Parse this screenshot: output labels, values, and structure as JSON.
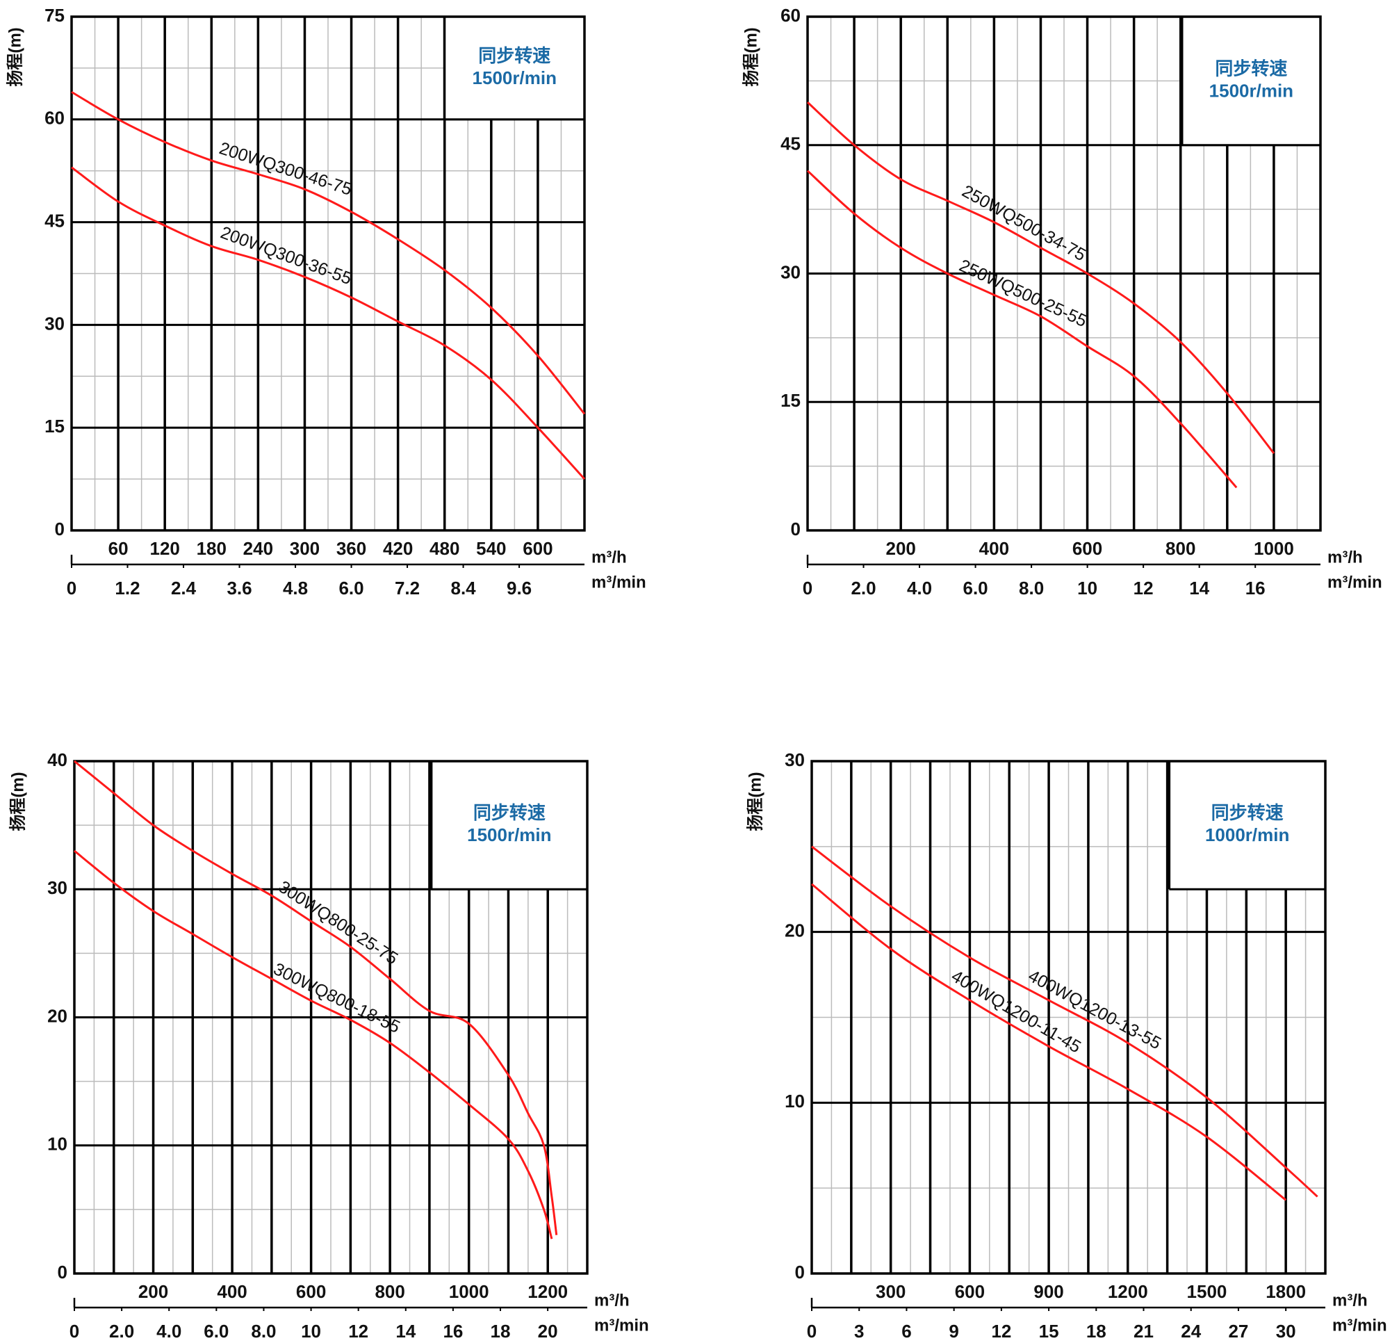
{
  "chart_data": [
    {
      "type": "line",
      "y_label": "扬程(m)",
      "ylim": [
        0,
        75
      ],
      "yticks": [
        0,
        15,
        30,
        45,
        60,
        75
      ],
      "xlim": [
        0,
        660
      ],
      "xticks": [
        60,
        120,
        180,
        240,
        300,
        360,
        420,
        480,
        540,
        600
      ],
      "x_unit": "m³/h",
      "grid_major": "tick",
      "x2lim": [
        0,
        11
      ],
      "x2ticks": [
        0,
        1.2,
        2.4,
        3.6,
        4.8,
        {
          "value": 6,
          "label": "6.0"
        },
        7.2,
        8.4,
        9.6
      ],
      "x2_unit": "m³/min",
      "note_title": "同步转速",
      "note_speed": "1500r/min",
      "series": [
        {
          "name": "200WQ300-46-75",
          "color": "#ff1a1a",
          "x": [
            0,
            60,
            120,
            180,
            240,
            300,
            360,
            420,
            480,
            540,
            600,
            660
          ],
          "values": [
            64,
            60,
            56.7,
            54,
            52,
            49.8,
            46.5,
            42.5,
            38,
            32.5,
            25.5,
            17
          ]
        },
        {
          "name": "200WQ300-36-55",
          "color": "#ff1a1a",
          "x": [
            0,
            60,
            120,
            180,
            240,
            300,
            360,
            420,
            480,
            540,
            600,
            660
          ],
          "values": [
            53,
            48,
            44.5,
            41.5,
            39.5,
            37,
            34,
            30.5,
            27,
            22,
            15,
            7.5
          ]
        }
      ]
    },
    {
      "type": "line",
      "y_label": "扬程(m)",
      "ylim": [
        0,
        60
      ],
      "yticks": [
        0,
        15,
        30,
        45,
        60
      ],
      "xlim": [
        0,
        1100
      ],
      "xticks": [
        200,
        400,
        600,
        800,
        1000
      ],
      "x_unit": "m³/h",
      "grid_major": "half-tick",
      "x2lim": [
        0,
        18.33
      ],
      "x2ticks": [
        0,
        {
          "value": 2,
          "label": "2.0"
        },
        {
          "value": 4,
          "label": "4.0"
        },
        {
          "value": 6,
          "label": "6.0"
        },
        {
          "value": 8,
          "label": "8.0"
        },
        10,
        12,
        14,
        16
      ],
      "x2_unit": "m³/min",
      "note_title": "同步转速",
      "note_speed": "1500r/min",
      "series": [
        {
          "name": "250WQ500-34-75",
          "color": "#ff1a1a",
          "x": [
            0,
            100,
            200,
            300,
            400,
            500,
            600,
            700,
            800,
            900,
            1000
          ],
          "values": [
            50,
            45,
            41,
            38.5,
            36,
            33,
            30,
            26.5,
            22,
            16,
            9
          ]
        },
        {
          "name": "250WQ500-25-55",
          "color": "#ff1a1a",
          "x": [
            0,
            100,
            200,
            300,
            400,
            500,
            600,
            700,
            800,
            920
          ],
          "values": [
            42,
            37,
            33,
            30,
            27.5,
            25,
            21.5,
            18,
            12.5,
            5
          ]
        }
      ]
    },
    {
      "type": "line",
      "y_label": "扬程(m)",
      "ylim": [
        0,
        40
      ],
      "yticks": [
        0,
        10,
        20,
        30,
        40
      ],
      "xlim": [
        0,
        1300
      ],
      "xticks": [
        200,
        400,
        600,
        800,
        1000,
        1200
      ],
      "x_unit": "m³/h",
      "grid_major": "half-tick",
      "x2lim": [
        0,
        21.67
      ],
      "x2ticks": [
        0,
        {
          "value": 2,
          "label": "2.0"
        },
        {
          "value": 4,
          "label": "4.0"
        },
        {
          "value": 6,
          "label": "6.0"
        },
        {
          "value": 8,
          "label": "8.0"
        },
        10,
        12,
        14,
        16,
        18,
        20
      ],
      "x2_unit": "m³/min",
      "note_title": "同步转速",
      "note_speed": "1500r/min",
      "series": [
        {
          "name": "300WQ800-25-75",
          "color": "#ff1a1a",
          "x": [
            0,
            100,
            200,
            300,
            400,
            500,
            600,
            700,
            800,
            900,
            1000,
            1100,
            1150,
            1190,
            1210,
            1222
          ],
          "values": [
            40,
            37.5,
            35,
            33,
            31.2,
            29.5,
            27.5,
            25.5,
            23,
            20.5,
            19.5,
            15.5,
            12.5,
            10,
            6,
            3
          ]
        },
        {
          "name": "300WQ800-18-55",
          "color": "#ff1a1a",
          "x": [
            0,
            100,
            200,
            300,
            400,
            500,
            600,
            700,
            800,
            900,
            1000,
            1100,
            1150,
            1190,
            1210
          ],
          "values": [
            33,
            30.5,
            28.3,
            26.5,
            24.7,
            23,
            21.3,
            19.8,
            18,
            15.7,
            13.2,
            10.5,
            8,
            5,
            2.7
          ]
        }
      ]
    },
    {
      "type": "line",
      "y_label": "扬程(m)",
      "ylim": [
        0,
        30
      ],
      "yticks": [
        0,
        10,
        20,
        30
      ],
      "xlim": [
        0,
        1950
      ],
      "xticks": [
        300,
        600,
        900,
        1200,
        1500,
        1800
      ],
      "x_unit": "m³/h",
      "grid_major": "half-tick",
      "x2lim": [
        0,
        32.5
      ],
      "x2ticks": [
        0,
        3,
        6,
        9,
        12,
        15,
        18,
        21,
        24,
        27,
        30
      ],
      "x2_unit": "m³/min",
      "note_title": "同步转速",
      "note_speed": "1000r/min",
      "series": [
        {
          "name": "400WQ1200-13-55",
          "color": "#ff1a1a",
          "x": [
            0,
            300,
            600,
            900,
            1200,
            1500,
            1800,
            1920
          ],
          "values": [
            25,
            21.5,
            18.5,
            16,
            13.5,
            10.3,
            6.2,
            4.5
          ]
        },
        {
          "name": "400WQ1200-11-45",
          "color": "#ff1a1a",
          "x": [
            0,
            300,
            600,
            900,
            1200,
            1500,
            1800
          ],
          "values": [
            22.8,
            19,
            16,
            13.3,
            10.8,
            8,
            4.3
          ]
        }
      ]
    }
  ]
}
